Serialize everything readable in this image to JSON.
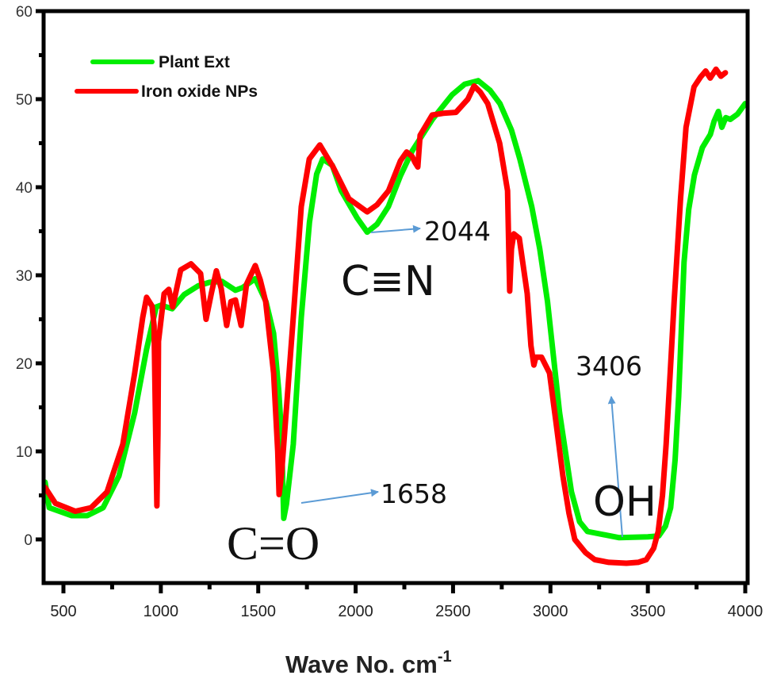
{
  "chart_data": {
    "type": "line",
    "title": "",
    "xlabel": "Wave No. cm",
    "xlabel_superscript": "-1",
    "ylabel": "",
    "xlim": [
      400,
      4000
    ],
    "ylim": [
      -5,
      60
    ],
    "x_ticks": [
      "500",
      "1000",
      "1500",
      "2000",
      "2500",
      "3000",
      "3500",
      "4000"
    ],
    "y_ticks": [
      "0",
      "10",
      "20",
      "30",
      "40",
      "50",
      "60"
    ],
    "legend_position": "top-left",
    "colors": {
      "plant": "#00ee00",
      "iron": "#ff0000",
      "arrow": "#5b9bd5",
      "axis": "#000000"
    },
    "series": [
      {
        "name": "Plant Ext",
        "color": "#00ee00",
        "points": [
          [
            406,
            6.5
          ],
          [
            427,
            3.6
          ],
          [
            541,
            2.7
          ],
          [
            622,
            2.7
          ],
          [
            704,
            3.6
          ],
          [
            785,
            7.2
          ],
          [
            866,
            14.4
          ],
          [
            927,
            21.6
          ],
          [
            976,
            26.4
          ],
          [
            1000,
            26.6
          ],
          [
            1058,
            26.2
          ],
          [
            1120,
            27.8
          ],
          [
            1192,
            28.8
          ],
          [
            1250,
            29.2
          ],
          [
            1314,
            29.3
          ],
          [
            1383,
            28.3
          ],
          [
            1420,
            28.6
          ],
          [
            1485,
            29.6
          ],
          [
            1540,
            27
          ],
          [
            1579,
            23.4
          ],
          [
            1605,
            17
          ],
          [
            1619,
            12
          ],
          [
            1631,
            2.4
          ],
          [
            1645,
            4
          ],
          [
            1680,
            10.8
          ],
          [
            1721,
            25.2
          ],
          [
            1763,
            36
          ],
          [
            1800,
            41.5
          ],
          [
            1831,
            43.2
          ],
          [
            1880,
            42.5
          ],
          [
            1926,
            39.6
          ],
          [
            2008,
            36.5
          ],
          [
            2059,
            34.9
          ],
          [
            2110,
            35.8
          ],
          [
            2168,
            37.8
          ],
          [
            2230,
            41.3
          ],
          [
            2290,
            44.1
          ],
          [
            2394,
            47.7
          ],
          [
            2495,
            50.5
          ],
          [
            2560,
            51.7
          ],
          [
            2629,
            52.1
          ],
          [
            2690,
            51
          ],
          [
            2741,
            49.5
          ],
          [
            2800,
            46.5
          ],
          [
            2843,
            43.2
          ],
          [
            2904,
            37.8
          ],
          [
            2945,
            33
          ],
          [
            2985,
            27
          ],
          [
            3047,
            14.4
          ],
          [
            3108,
            5.4
          ],
          [
            3150,
            2
          ],
          [
            3190,
            0.9
          ],
          [
            3353,
            0.2
          ],
          [
            3500,
            0.3
          ],
          [
            3556,
            0.4
          ],
          [
            3590,
            1.5
          ],
          [
            3617,
            3.6
          ],
          [
            3640,
            9
          ],
          [
            3658,
            16.2
          ],
          [
            3686,
            31.5
          ],
          [
            3710,
            37.5
          ],
          [
            3739,
            41.4
          ],
          [
            3780,
            44.5
          ],
          [
            3821,
            46
          ],
          [
            3840,
            47.5
          ],
          [
            3862,
            48.6
          ],
          [
            3880,
            46.8
          ],
          [
            3900,
            47.9
          ],
          [
            3923,
            47.7
          ],
          [
            3960,
            48.3
          ],
          [
            4000,
            49.5
          ]
        ]
      },
      {
        "name": "Iron oxide NPs",
        "color": "#ff0000",
        "points": [
          [
            406,
            5.9
          ],
          [
            459,
            4.1
          ],
          [
            561,
            3.2
          ],
          [
            642,
            3.6
          ],
          [
            724,
            5.4
          ],
          [
            805,
            10.8
          ],
          [
            866,
            18.9
          ],
          [
            907,
            25.2
          ],
          [
            927,
            27.5
          ],
          [
            955,
            26.5
          ],
          [
            965,
            24.3
          ],
          [
            975,
            10
          ],
          [
            980,
            3.8
          ],
          [
            985,
            12
          ],
          [
            988,
            22.5
          ],
          [
            1017,
            27.9
          ],
          [
            1041,
            28.4
          ],
          [
            1061,
            26.4
          ],
          [
            1102,
            30.6
          ],
          [
            1155,
            31.3
          ],
          [
            1204,
            30.2
          ],
          [
            1232,
            25
          ],
          [
            1260,
            28
          ],
          [
            1285,
            30.5
          ],
          [
            1310,
            28.5
          ],
          [
            1338,
            24.3
          ],
          [
            1360,
            27
          ],
          [
            1383,
            27.2
          ],
          [
            1412,
            24.3
          ],
          [
            1440,
            29
          ],
          [
            1485,
            31.1
          ],
          [
            1510,
            29.5
          ],
          [
            1538,
            27
          ],
          [
            1579,
            18.9
          ],
          [
            1600,
            10
          ],
          [
            1607,
            5.1
          ],
          [
            1620,
            7.5
          ],
          [
            1631,
            10.8
          ],
          [
            1680,
            25.2
          ],
          [
            1721,
            37.8
          ],
          [
            1762,
            43.2
          ],
          [
            1816,
            44.8
          ],
          [
            1884,
            42.3
          ],
          [
            1965,
            38.7
          ],
          [
            2059,
            37.2
          ],
          [
            2110,
            38
          ],
          [
            2169,
            39.6
          ],
          [
            2230,
            43
          ],
          [
            2262,
            44
          ],
          [
            2290,
            43.5
          ],
          [
            2305,
            42.8
          ],
          [
            2319,
            42.3
          ],
          [
            2331,
            45.9
          ],
          [
            2393,
            48.2
          ],
          [
            2450,
            48.4
          ],
          [
            2515,
            48.5
          ],
          [
            2576,
            50
          ],
          [
            2608,
            51.5
          ],
          [
            2640,
            50.8
          ],
          [
            2678,
            49.5
          ],
          [
            2739,
            45
          ],
          [
            2780,
            39.6
          ],
          [
            2786,
            33
          ],
          [
            2791,
            28.2
          ],
          [
            2800,
            33
          ],
          [
            2812,
            34.7
          ],
          [
            2840,
            34.2
          ],
          [
            2881,
            27.9
          ],
          [
            2900,
            22
          ],
          [
            2915,
            19.8
          ],
          [
            2925,
            20.7
          ],
          [
            2954,
            20.7
          ],
          [
            2995,
            18.9
          ],
          [
            3030,
            13
          ],
          [
            3064,
            7.2
          ],
          [
            3095,
            3
          ],
          [
            3125,
            0
          ],
          [
            3180,
            -1.5
          ],
          [
            3227,
            -2.3
          ],
          [
            3300,
            -2.6
          ],
          [
            3390,
            -2.7
          ],
          [
            3450,
            -2.6
          ],
          [
            3492,
            -2.3
          ],
          [
            3530,
            -1
          ],
          [
            3553,
            0.9
          ],
          [
            3575,
            5
          ],
          [
            3594,
            10.8
          ],
          [
            3615,
            19
          ],
          [
            3635,
            27
          ],
          [
            3668,
            38.7
          ],
          [
            3696,
            46.8
          ],
          [
            3737,
            51.4
          ],
          [
            3770,
            52.5
          ],
          [
            3797,
            53.2
          ],
          [
            3820,
            52.4
          ],
          [
            3850,
            53.4
          ],
          [
            3875,
            52.6
          ],
          [
            3898,
            53
          ]
        ]
      }
    ],
    "annotations": [
      {
        "label": "2044",
        "group": "C≡N"
      },
      {
        "label": "1658",
        "group": "C=O"
      },
      {
        "label": "3406",
        "group": "OH"
      }
    ]
  }
}
